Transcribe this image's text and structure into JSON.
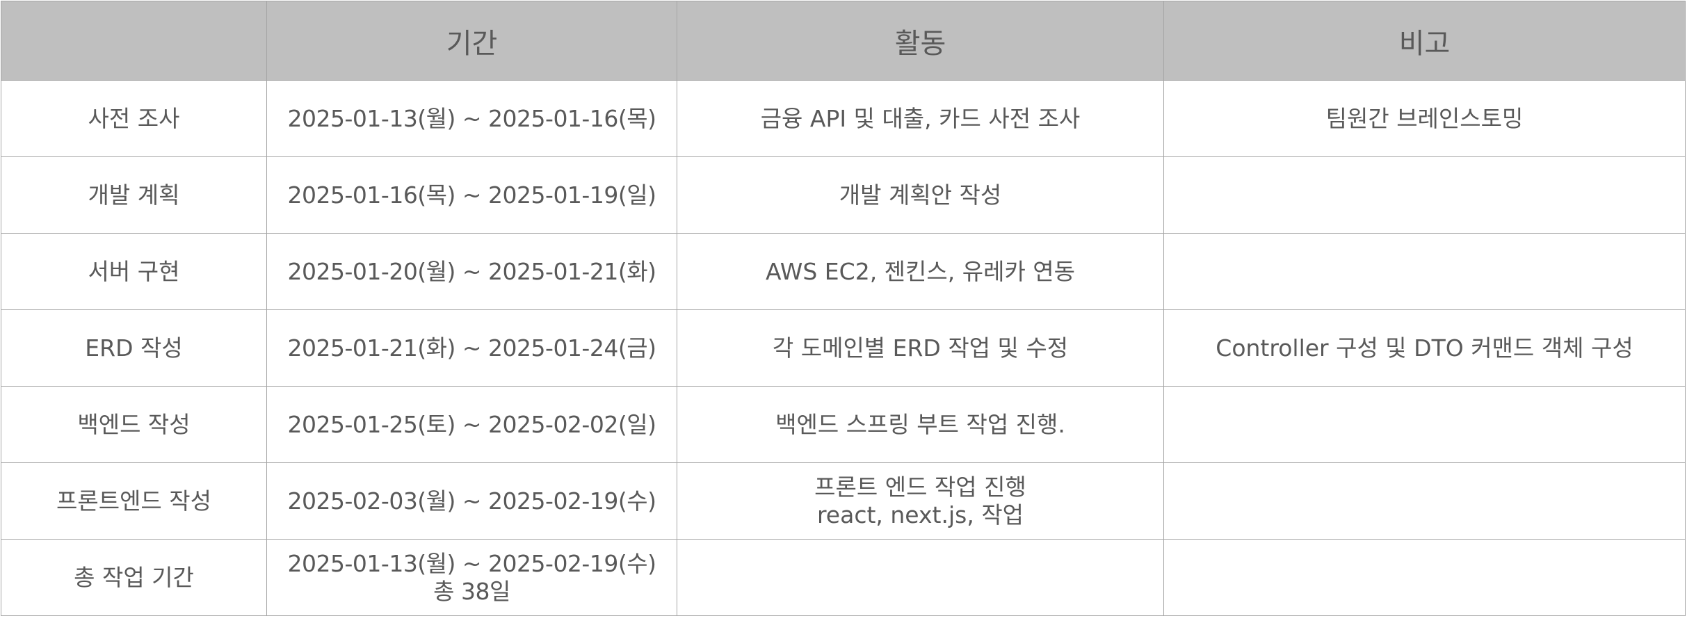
{
  "headers": {
    "task": "",
    "period": "기간",
    "activity": "활동",
    "note": "비고"
  },
  "rows": [
    {
      "task": "사전 조사",
      "period": [
        "2025-01-13(월) ~ 2025-01-16(목)"
      ],
      "activity": [
        "금융 API 및 대출, 카드 사전 조사"
      ],
      "note": "팀원간 브레인스토밍"
    },
    {
      "task": "개발 계획",
      "period": [
        "2025-01-16(목) ~ 2025-01-19(일)"
      ],
      "activity": [
        "개발 계획안 작성"
      ],
      "note": ""
    },
    {
      "task": "서버 구현",
      "period": [
        "2025-01-20(월) ~ 2025-01-21(화)"
      ],
      "activity": [
        "AWS EC2, 젠킨스, 유레카 연동"
      ],
      "note": ""
    },
    {
      "task": "ERD 작성",
      "period": [
        "2025-01-21(화) ~ 2025-01-24(금)"
      ],
      "activity": [
        "각 도메인별 ERD 작업 및 수정"
      ],
      "note": "Controller 구성 및 DTO 커맨드 객체 구성"
    },
    {
      "task": "백엔드 작성",
      "period": [
        "2025-01-25(토) ~ 2025-02-02(일)"
      ],
      "activity": [
        "백엔드 스프링 부트 작업 진행."
      ],
      "note": ""
    },
    {
      "task": "프론트엔드 작성",
      "period": [
        "2025-02-03(월) ~ 2025-02-19(수)"
      ],
      "activity": [
        "프론트 엔드 작업 진행",
        "react, next.js, 작업"
      ],
      "note": ""
    },
    {
      "task": "총 작업 기간",
      "period": [
        "2025-01-13(월) ~ 2025-02-19(수)",
        "총 38일"
      ],
      "activity": [
        ""
      ],
      "note": ""
    }
  ]
}
